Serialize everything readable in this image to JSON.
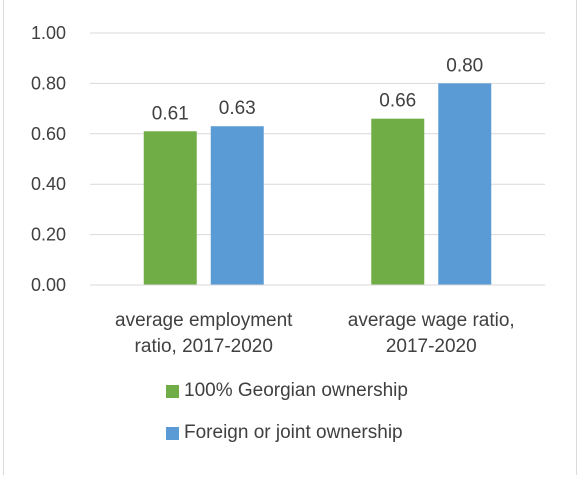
{
  "chart_data": {
    "type": "bar",
    "categories": [
      [
        "average employment",
        "ratio, 2017-2020"
      ],
      [
        "average wage ratio,",
        "2017-2020"
      ]
    ],
    "series": [
      {
        "name": "100% Georgian ownership",
        "color": "#70ad47",
        "values": [
          0.61,
          0.66
        ],
        "labels": [
          "0.61",
          "0.66"
        ]
      },
      {
        "name": "Foreign or joint ownership",
        "color": "#5b9bd5",
        "values": [
          0.63,
          0.8
        ],
        "labels": [
          "0.63",
          "0.80"
        ]
      }
    ],
    "yticks": [
      "0.00",
      "0.20",
      "0.40",
      "0.60",
      "0.80",
      "1.00"
    ],
    "ylim": [
      0,
      1.0
    ],
    "grid": true,
    "legend_position": "bottom"
  }
}
